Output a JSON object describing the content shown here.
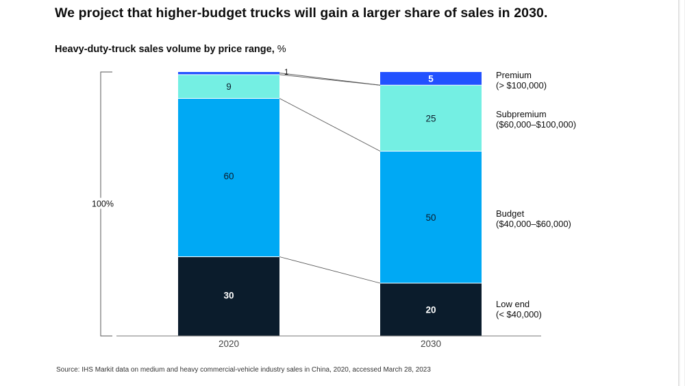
{
  "header": {
    "title": "We project that higher-budget trucks will gain a larger share of sales in 2030.",
    "subtitle": "Heavy-duty-truck sales volume by price range,",
    "unit": "%"
  },
  "footer": {
    "source": "Source: IHS Markit data on medium and heavy commercial-vehicle industry sales in China, 2020, accessed March 28, 2023"
  },
  "chart_data": {
    "type": "bar",
    "stacked": true,
    "categories": [
      "2020",
      "2030"
    ],
    "total_label": "100%",
    "series": [
      {
        "name": "Low end",
        "range": "(< $40,000)",
        "values": [
          30,
          20
        ],
        "labels": [
          "30",
          "20"
        ],
        "color": "#0b1c2c",
        "text_color": "#ffffff",
        "label_bold": true
      },
      {
        "name": "Budget",
        "range": "($40,000–$60,000)",
        "values": [
          60,
          50
        ],
        "labels": [
          "60",
          "50"
        ],
        "color": "#00a9f4",
        "text_color": "#0b1c2c",
        "label_bold": false
      },
      {
        "name": "Subpremium",
        "range": "($60,000–$100,000)",
        "values": [
          9,
          25
        ],
        "labels": [
          "9",
          "25"
        ],
        "color": "#74efe3",
        "text_color": "#0b1c2c",
        "label_bold": false
      },
      {
        "name": "Premium",
        "range": "(> $100,000)",
        "values": [
          1,
          5
        ],
        "labels": [
          "1",
          "5"
        ],
        "color": "#2251ff",
        "text_color": "#ffffff",
        "label_bold": true
      }
    ],
    "ylim": [
      0,
      100
    ],
    "legend_position": "right",
    "grid": false
  }
}
